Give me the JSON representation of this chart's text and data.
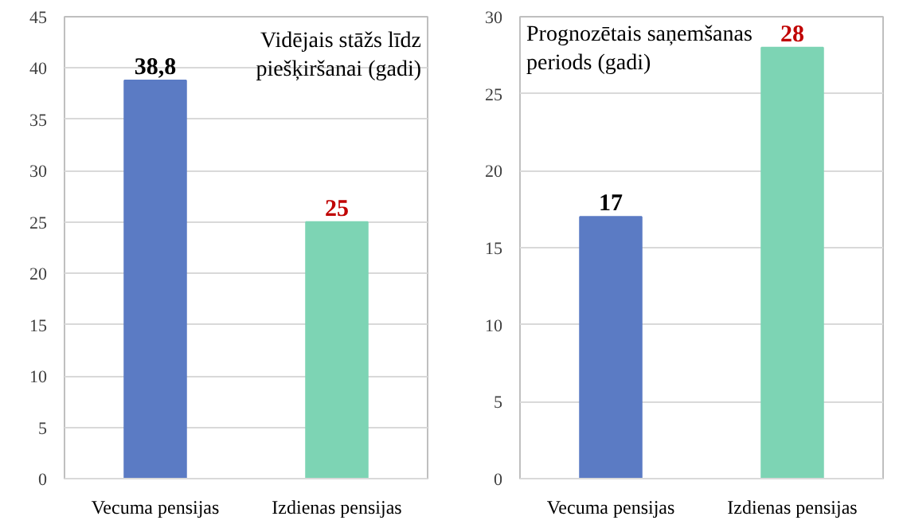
{
  "chart_data": [
    {
      "type": "bar",
      "title": "Vidējais stāžs līdz piešķiršanai (gadi)",
      "categories": [
        "Vecuma pensijas",
        "Izdienas pensijas"
      ],
      "values": [
        38.8,
        25
      ],
      "colors": [
        "#5b7bc4",
        "#7dd4b4"
      ],
      "value_labels": [
        "38,8",
        "25"
      ],
      "ylim": [
        0,
        45
      ],
      "yticks": [
        0,
        5,
        10,
        15,
        20,
        25,
        30,
        35,
        40,
        45
      ],
      "grid": "y"
    },
    {
      "type": "bar",
      "title": "Prognozētais saņemšanas periods (gadi)",
      "categories": [
        "Vecuma pensijas",
        "Izdienas pensijas"
      ],
      "values": [
        17,
        28
      ],
      "colors": [
        "#5b7bc4",
        "#7dd4b4"
      ],
      "value_labels": [
        "17",
        "28"
      ],
      "ylim": [
        0,
        30
      ],
      "yticks": [
        0,
        5,
        10,
        15,
        20,
        25,
        30
      ],
      "grid": "y"
    }
  ]
}
